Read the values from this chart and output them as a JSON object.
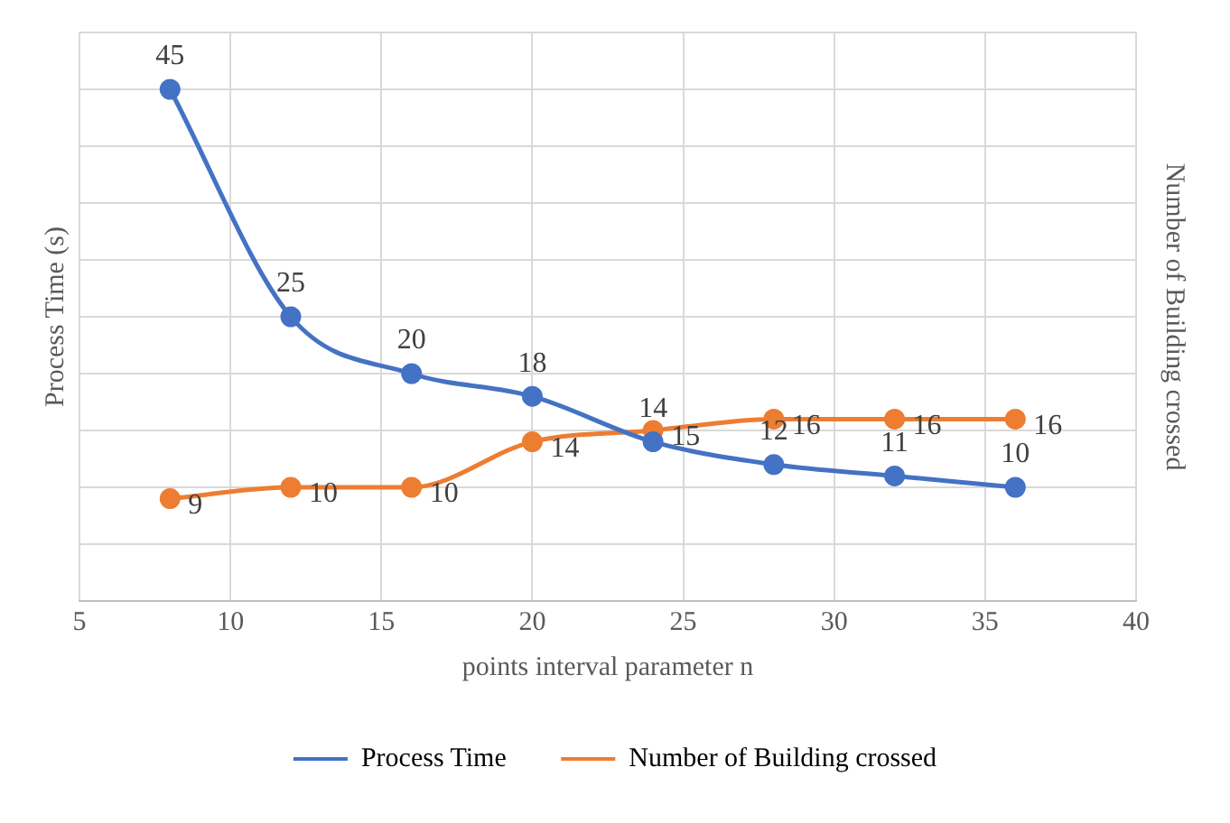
{
  "chart_data": {
    "type": "line",
    "xlabel": "points interval parameter n",
    "ylabel": "Process Time (s)",
    "y2label": "Number of Building crossed",
    "x": [
      8,
      12,
      16,
      20,
      24,
      28,
      32,
      36
    ],
    "series": [
      {
        "name": "Process Time",
        "color": "#4472c4",
        "values": [
          45,
          25,
          20,
          18,
          14,
          12,
          11,
          10
        ]
      },
      {
        "name": "Number of Building crossed",
        "color": "#ed7d31",
        "values": [
          9,
          10,
          10,
          14,
          15,
          16,
          16,
          16
        ]
      }
    ],
    "xlim": [
      5,
      40
    ],
    "xticks": [
      5,
      10,
      15,
      20,
      25,
      30,
      35,
      40
    ],
    "ylim": [
      0,
      50
    ],
    "yticks": [
      {
        "value": 0,
        "label": null
      },
      {
        "value": 5,
        "label": null
      },
      {
        "value": 10,
        "label": null
      },
      {
        "value": 15,
        "label": null
      },
      {
        "value": 20,
        "label": null
      },
      {
        "value": 25,
        "label": null
      },
      {
        "value": 30,
        "label": null
      },
      {
        "value": 35,
        "label": null
      },
      {
        "value": 40,
        "label": null
      },
      {
        "value": 45,
        "label": null
      },
      {
        "value": 50,
        "label": null
      }
    ],
    "tick_labels": "x",
    "grid": true,
    "legend": "bottom",
    "marker": "circle",
    "line_style": "solid",
    "data_labels": true
  }
}
